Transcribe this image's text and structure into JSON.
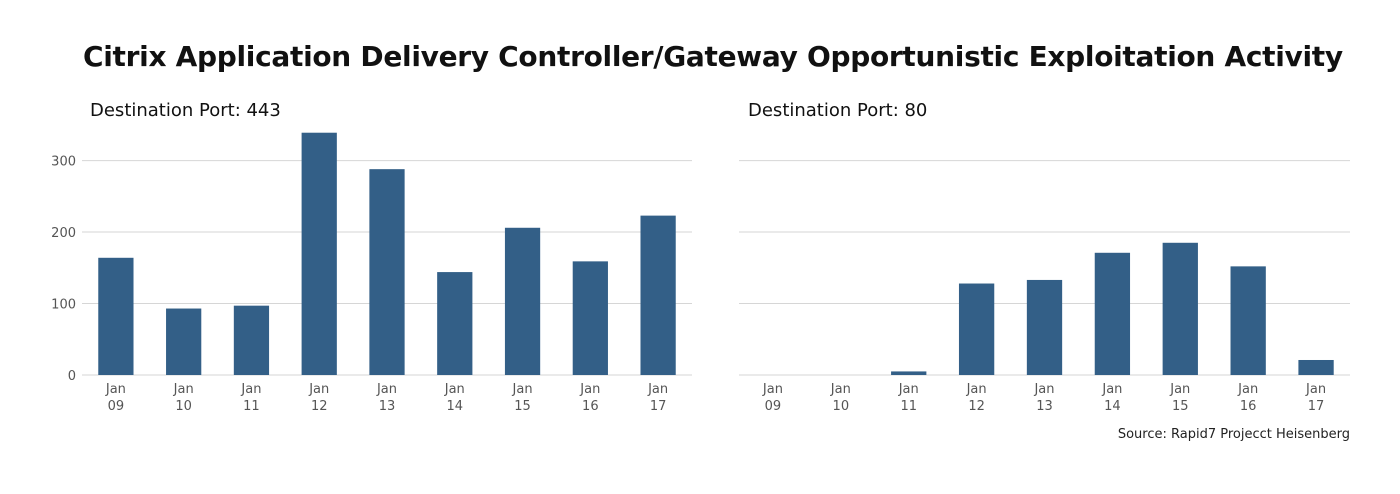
{
  "title": "Citrix Application Delivery Controller/Gateway Opportunistic Exploitation Activity",
  "source": "Source: Rapid7 Projecct Heisenberg",
  "colors": {
    "bar": "#335f87",
    "grid": "#d6d6d6"
  },
  "chart_data": [
    {
      "type": "bar",
      "title": "Destination Port: 443",
      "categories": [
        "Jan 09",
        "Jan 10",
        "Jan 11",
        "Jan 12",
        "Jan 13",
        "Jan 14",
        "Jan 15",
        "Jan 16",
        "Jan 17"
      ],
      "category_lines": [
        [
          "Jan",
          "09"
        ],
        [
          "Jan",
          "10"
        ],
        [
          "Jan",
          "11"
        ],
        [
          "Jan",
          "12"
        ],
        [
          "Jan",
          "13"
        ],
        [
          "Jan",
          "14"
        ],
        [
          "Jan",
          "15"
        ],
        [
          "Jan",
          "16"
        ],
        [
          "Jan",
          "17"
        ]
      ],
      "values": [
        164,
        93,
        97,
        339,
        288,
        144,
        206,
        159,
        223
      ],
      "yticks": [
        0,
        100,
        200,
        300
      ],
      "ylim": [
        0,
        340
      ],
      "grid": true
    },
    {
      "type": "bar",
      "title": "Destination Port: 80",
      "categories": [
        "Jan 09",
        "Jan 10",
        "Jan 11",
        "Jan 12",
        "Jan 13",
        "Jan 14",
        "Jan 15",
        "Jan 16",
        "Jan 17"
      ],
      "category_lines": [
        [
          "Jan",
          "09"
        ],
        [
          "Jan",
          "10"
        ],
        [
          "Jan",
          "11"
        ],
        [
          "Jan",
          "12"
        ],
        [
          "Jan",
          "13"
        ],
        [
          "Jan",
          "14"
        ],
        [
          "Jan",
          "15"
        ],
        [
          "Jan",
          "16"
        ],
        [
          "Jan",
          "17"
        ]
      ],
      "values": [
        0,
        0,
        5,
        128,
        133,
        171,
        185,
        152,
        21
      ],
      "yticks": [
        0,
        100,
        200,
        300
      ],
      "ylim": [
        0,
        340
      ],
      "grid": true
    }
  ]
}
